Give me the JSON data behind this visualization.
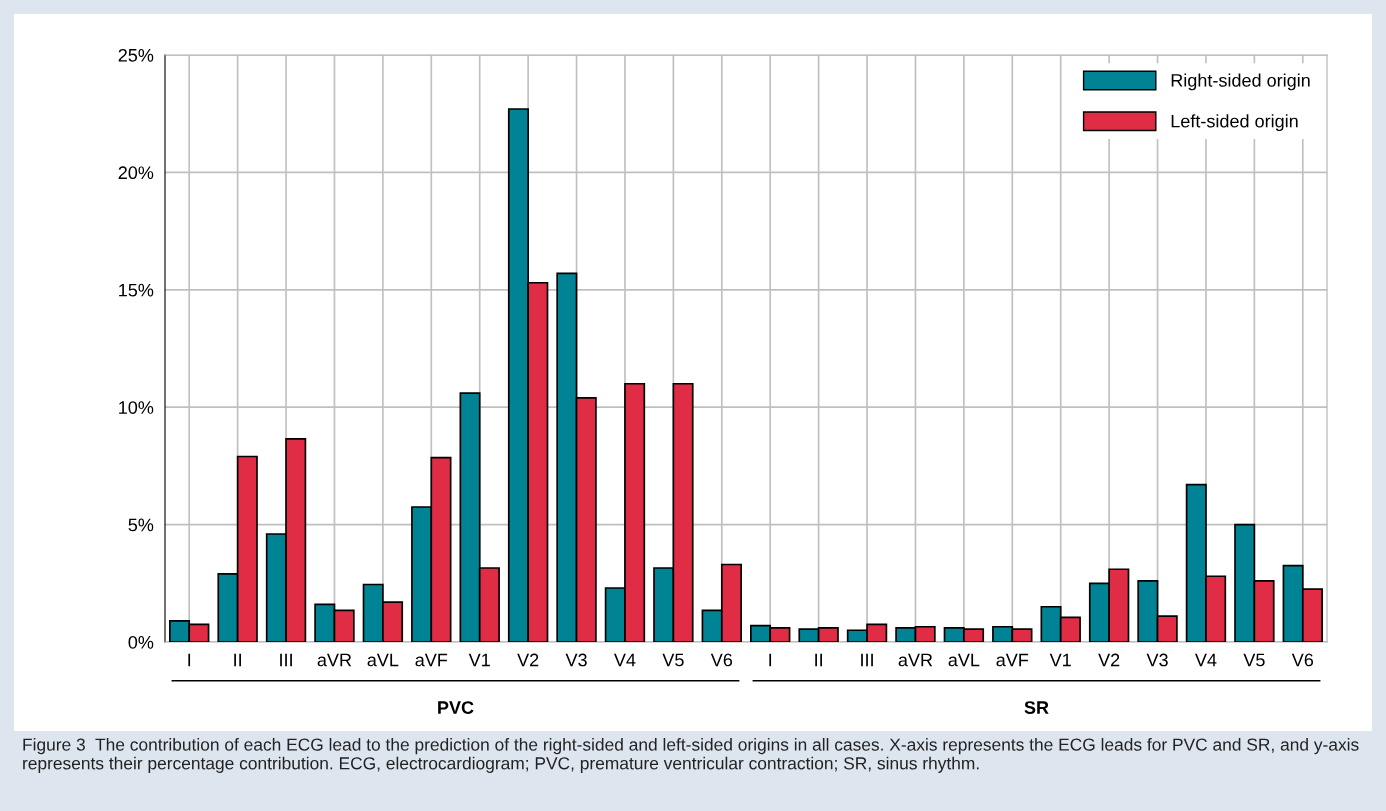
{
  "chart_data": {
    "type": "bar",
    "categories": [
      "I",
      "II",
      "III",
      "aVR",
      "aVL",
      "aVF",
      "V1",
      "V2",
      "V3",
      "V4",
      "V5",
      "V6",
      "I",
      "II",
      "III",
      "aVR",
      "aVL",
      "aVF",
      "V1",
      "V2",
      "V3",
      "V4",
      "V5",
      "V6"
    ],
    "series": [
      {
        "name": "Right-sided origin",
        "color": "#008394",
        "values": [
          0.9,
          2.9,
          4.6,
          1.6,
          2.45,
          5.75,
          10.6,
          22.7,
          15.7,
          2.3,
          3.15,
          1.35,
          0.7,
          0.55,
          0.5,
          0.6,
          0.6,
          0.65,
          1.5,
          2.5,
          2.6,
          6.7,
          5.0,
          3.25
        ]
      },
      {
        "name": "Left-sided origin",
        "color": "#e02c45",
        "values": [
          0.75,
          7.9,
          8.65,
          1.35,
          1.7,
          7.85,
          3.15,
          15.3,
          10.4,
          11.0,
          11.0,
          3.3,
          0.6,
          0.6,
          0.75,
          0.65,
          0.55,
          0.55,
          1.05,
          3.1,
          1.1,
          2.8,
          2.6,
          2.25
        ]
      }
    ],
    "ylim": [
      0,
      25
    ],
    "yticks": [
      {
        "value": 0,
        "label": "0%"
      },
      {
        "value": 5,
        "label": "5%"
      },
      {
        "value": 10,
        "label": "10%"
      },
      {
        "value": 15,
        "label": "15%"
      },
      {
        "value": 20,
        "label": "20%"
      },
      {
        "value": 25,
        "label": "25%"
      }
    ],
    "grid": true,
    "legend": "top right",
    "annotations": [
      "PVC",
      "SR",
      "Figure 3  The contribution of each ECG lead to the prediction of the right-sided and left-sided origins in all cases. X-axis represents the ECG leads for PVC and SR, and y-axis represents their percentage contribution. ECG, electrocardiogram; PVC, premature ventricular contraction; SR, sinus rhythm."
    ]
  }
}
